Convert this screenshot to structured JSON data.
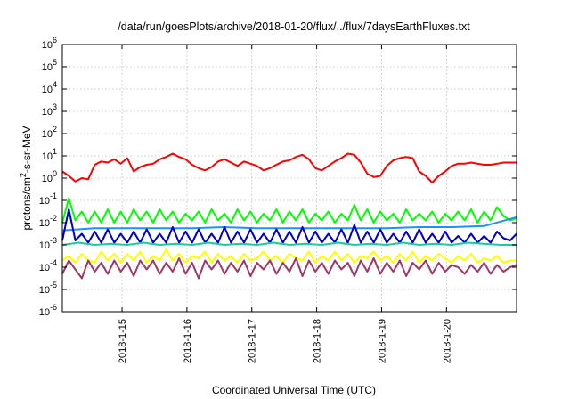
{
  "chart_data": {
    "type": "line",
    "title": "/data/run/goesPlots/archive/2018-01-20/flux/../flux/7daysEarthFluxes.txt",
    "xlabel": "Coordinated Universal Time (UTC)",
    "ylabel": "protons/cm²-s-sr-MeV",
    "ylabel_parts": {
      "prefix": "protons/cm",
      "sup": "2",
      "suffix": "-s-sr-MeV"
    },
    "yscale": "log",
    "ylim": [
      1e-06,
      1000000.0
    ],
    "xlim": [
      0,
      7
    ],
    "grid": true,
    "y_ticks": [
      {
        "base": "10",
        "exp": "-6",
        "value": -6
      },
      {
        "base": "10",
        "exp": "-5",
        "value": -5
      },
      {
        "base": "10",
        "exp": "-4",
        "value": -4
      },
      {
        "base": "10",
        "exp": "-3",
        "value": -3
      },
      {
        "base": "10",
        "exp": "-2",
        "value": -2
      },
      {
        "base": "10",
        "exp": "-1",
        "value": -1
      },
      {
        "base": "10",
        "exp": "0",
        "value": 0
      },
      {
        "base": "10",
        "exp": "1",
        "value": 1
      },
      {
        "base": "10",
        "exp": "2",
        "value": 2
      },
      {
        "base": "10",
        "exp": "3",
        "value": 3
      },
      {
        "base": "10",
        "exp": "4",
        "value": 4
      },
      {
        "base": "10",
        "exp": "5",
        "value": 5
      },
      {
        "base": "10",
        "exp": "6",
        "value": 6
      }
    ],
    "x_ticks": [
      {
        "label": "2018-1-15",
        "value": 0.92
      },
      {
        "label": "2018-1-16",
        "value": 1.92
      },
      {
        "label": "2018-1-17",
        "value": 2.92
      },
      {
        "label": "2018-1-18",
        "value": 3.92
      },
      {
        "label": "2018-1-19",
        "value": 4.92
      },
      {
        "label": "2018-1-20",
        "value": 5.92
      }
    ],
    "series": [
      {
        "color": "#ff0000",
        "x": [
          0,
          0.1,
          0.2,
          0.3,
          0.4,
          0.5,
          0.6,
          0.7,
          0.8,
          0.9,
          1.0,
          1.1,
          1.2,
          1.3,
          1.4,
          1.5,
          1.6,
          1.7,
          1.8,
          1.9,
          2.0,
          2.1,
          2.2,
          2.3,
          2.4,
          2.5,
          2.6,
          2.7,
          2.8,
          2.9,
          3.0,
          3.1,
          3.2,
          3.3,
          3.4,
          3.5,
          3.6,
          3.7,
          3.8,
          3.9,
          4.0,
          4.1,
          4.2,
          4.3,
          4.4,
          4.5,
          4.6,
          4.7,
          4.8,
          4.9,
          5.0,
          5.1,
          5.2,
          5.3,
          5.4,
          5.5,
          5.6,
          5.7,
          5.8,
          5.9,
          6.0,
          6.1,
          6.2,
          6.3,
          6.4,
          6.5,
          6.6,
          6.7,
          6.8,
          6.9,
          7.0
        ],
        "log10_values": [
          0.3,
          0.1,
          -0.15,
          0.0,
          -0.05,
          0.6,
          0.75,
          0.7,
          0.85,
          0.65,
          0.9,
          0.3,
          0.5,
          0.6,
          0.65,
          0.85,
          0.95,
          1.1,
          0.95,
          0.85,
          0.6,
          0.45,
          0.35,
          0.5,
          0.75,
          0.85,
          0.7,
          0.55,
          0.75,
          0.65,
          0.55,
          0.35,
          0.45,
          0.6,
          0.75,
          0.8,
          0.95,
          1.05,
          0.85,
          0.45,
          0.35,
          0.55,
          0.75,
          0.9,
          1.1,
          1.05,
          0.7,
          0.2,
          0.05,
          0.1,
          0.55,
          0.8,
          0.9,
          0.95,
          0.9,
          0.3,
          0.1,
          -0.2,
          0.1,
          0.3,
          0.55,
          0.65,
          0.65,
          0.7,
          0.65,
          0.6,
          0.6,
          0.65,
          0.7,
          0.7,
          0.7
        ]
      },
      {
        "color": "#00ff00",
        "x": [
          0,
          0.1,
          0.2,
          0.3,
          0.4,
          0.5,
          0.6,
          0.7,
          0.8,
          0.9,
          1.0,
          1.1,
          1.2,
          1.3,
          1.4,
          1.5,
          1.6,
          1.7,
          1.8,
          1.9,
          2.0,
          2.1,
          2.2,
          2.3,
          2.4,
          2.5,
          2.6,
          2.7,
          2.8,
          2.9,
          3.0,
          3.1,
          3.2,
          3.3,
          3.4,
          3.5,
          3.6,
          3.7,
          3.8,
          3.9,
          4.0,
          4.1,
          4.2,
          4.3,
          4.4,
          4.5,
          4.6,
          4.7,
          4.8,
          4.9,
          5.0,
          5.1,
          5.2,
          5.3,
          5.4,
          5.5,
          5.6,
          5.7,
          5.8,
          5.9,
          6.0,
          6.1,
          6.2,
          6.3,
          6.4,
          6.5,
          6.6,
          6.7,
          6.8,
          6.9,
          7.0
        ],
        "log10_values": [
          -2.0,
          -0.9,
          -1.9,
          -1.5,
          -2.0,
          -1.5,
          -2.0,
          -1.4,
          -2.0,
          -1.5,
          -2.0,
          -1.4,
          -1.9,
          -1.5,
          -2.0,
          -1.4,
          -1.9,
          -1.5,
          -2.0,
          -1.6,
          -1.9,
          -1.5,
          -2.0,
          -1.4,
          -1.9,
          -1.6,
          -2.0,
          -1.4,
          -1.9,
          -1.5,
          -2.0,
          -1.6,
          -1.9,
          -1.4,
          -2.0,
          -1.5,
          -1.9,
          -1.4,
          -2.0,
          -1.6,
          -1.9,
          -1.5,
          -2.0,
          -1.6,
          -1.9,
          -1.2,
          -1.9,
          -1.4,
          -2.0,
          -1.5,
          -1.9,
          -1.6,
          -2.0,
          -1.4,
          -1.9,
          -1.6,
          -1.9,
          -1.5,
          -2.0,
          -1.6,
          -1.9,
          -1.5,
          -1.9,
          -1.4,
          -2.0,
          -1.5,
          -1.9,
          -1.3,
          -1.7,
          -1.9,
          -1.8
        ]
      },
      {
        "color": "#1e90ff",
        "x": [
          0,
          0.5,
          1.0,
          1.5,
          2.0,
          2.5,
          3.0,
          3.5,
          4.0,
          4.5,
          5.0,
          5.5,
          6.0,
          6.5,
          7.0
        ],
        "log10_values": [
          -2.35,
          -2.25,
          -2.25,
          -2.25,
          -2.25,
          -2.2,
          -2.25,
          -2.25,
          -2.25,
          -2.25,
          -2.25,
          -2.2,
          -2.2,
          -2.15,
          -1.75
        ]
      },
      {
        "color": "#0000cd",
        "x": [
          0,
          0.1,
          0.2,
          0.3,
          0.4,
          0.5,
          0.6,
          0.7,
          0.8,
          0.9,
          1.0,
          1.1,
          1.2,
          1.3,
          1.4,
          1.5,
          1.6,
          1.7,
          1.8,
          1.9,
          2.0,
          2.1,
          2.2,
          2.3,
          2.4,
          2.5,
          2.6,
          2.7,
          2.8,
          2.9,
          3.0,
          3.1,
          3.2,
          3.3,
          3.4,
          3.5,
          3.6,
          3.7,
          3.8,
          3.9,
          4.0,
          4.1,
          4.2,
          4.3,
          4.4,
          4.5,
          4.6,
          4.7,
          4.8,
          4.9,
          5.0,
          5.1,
          5.2,
          5.3,
          5.4,
          5.5,
          5.6,
          5.7,
          5.8,
          5.9,
          6.0,
          6.1,
          6.2,
          6.3,
          6.4,
          6.5,
          6.6,
          6.7,
          6.8,
          6.9,
          7.0
        ],
        "log10_values": [
          -2.8,
          -1.4,
          -2.8,
          -2.5,
          -2.9,
          -2.4,
          -2.9,
          -2.3,
          -2.9,
          -2.5,
          -2.9,
          -2.4,
          -2.9,
          -2.3,
          -2.9,
          -2.5,
          -2.9,
          -2.2,
          -2.9,
          -2.4,
          -2.9,
          -2.3,
          -2.9,
          -2.5,
          -2.9,
          -2.2,
          -2.9,
          -2.4,
          -2.9,
          -2.3,
          -2.9,
          -2.5,
          -2.9,
          -2.3,
          -2.9,
          -2.4,
          -2.9,
          -2.2,
          -2.9,
          -2.4,
          -2.9,
          -2.5,
          -2.9,
          -2.3,
          -2.9,
          -2.1,
          -2.9,
          -2.4,
          -2.9,
          -2.3,
          -2.9,
          -2.5,
          -2.9,
          -2.4,
          -2.9,
          -2.3,
          -2.9,
          -2.5,
          -2.9,
          -2.4,
          -2.9,
          -2.6,
          -2.9,
          -2.5,
          -2.9,
          -2.6,
          -2.9,
          -2.4,
          -2.7,
          -2.8,
          -2.5
        ]
      },
      {
        "color": "#20c8a0",
        "x": [
          0,
          0.25,
          0.5,
          0.75,
          1.0,
          1.25,
          1.5,
          1.75,
          2.0,
          2.25,
          2.5,
          2.75,
          3.0,
          3.25,
          3.5,
          3.75,
          4.0,
          4.25,
          4.5,
          4.75,
          5.0,
          5.25,
          5.5,
          5.75,
          6.0,
          6.25,
          6.5,
          6.75,
          7.0
        ],
        "log10_values": [
          -3.0,
          -2.9,
          -3.0,
          -2.95,
          -3.0,
          -2.9,
          -3.0,
          -2.95,
          -3.0,
          -2.9,
          -3.0,
          -2.95,
          -3.0,
          -2.9,
          -3.0,
          -2.95,
          -3.0,
          -2.9,
          -3.0,
          -2.95,
          -3.0,
          -2.9,
          -3.0,
          -2.95,
          -3.0,
          -2.9,
          -2.95,
          -3.0,
          -3.0
        ]
      },
      {
        "color": "#ffff00",
        "x": [
          0,
          0.1,
          0.2,
          0.3,
          0.4,
          0.5,
          0.6,
          0.7,
          0.8,
          0.9,
          1.0,
          1.1,
          1.2,
          1.3,
          1.4,
          1.5,
          1.6,
          1.7,
          1.8,
          1.9,
          2.0,
          2.1,
          2.2,
          2.3,
          2.4,
          2.5,
          2.6,
          2.7,
          2.8,
          2.9,
          3.0,
          3.1,
          3.2,
          3.3,
          3.4,
          3.5,
          3.6,
          3.7,
          3.8,
          3.9,
          4.0,
          4.1,
          4.2,
          4.3,
          4.4,
          4.5,
          4.6,
          4.7,
          4.8,
          4.9,
          5.0,
          5.1,
          5.2,
          5.3,
          5.4,
          5.5,
          5.6,
          5.7,
          5.8,
          5.9,
          6.0,
          6.1,
          6.2,
          6.3,
          6.4,
          6.5,
          6.6,
          6.7,
          6.8,
          6.9,
          7.0
        ],
        "log10_values": [
          -3.7,
          -3.5,
          -3.8,
          -3.4,
          -3.7,
          -3.8,
          -3.3,
          -3.7,
          -3.4,
          -3.8,
          -3.4,
          -3.7,
          -3.3,
          -3.8,
          -3.5,
          -3.7,
          -3.2,
          -3.7,
          -3.4,
          -3.8,
          -3.5,
          -3.6,
          -3.3,
          -3.8,
          -3.4,
          -3.7,
          -3.5,
          -3.8,
          -3.4,
          -3.7,
          -3.6,
          -3.3,
          -3.7,
          -3.5,
          -3.8,
          -3.4,
          -3.6,
          -3.7,
          -3.3,
          -3.8,
          -3.5,
          -3.7,
          -3.3,
          -3.7,
          -3.4,
          -3.8,
          -3.5,
          -3.6,
          -3.3,
          -3.7,
          -3.5,
          -3.8,
          -3.4,
          -3.7,
          -3.3,
          -3.8,
          -3.5,
          -3.7,
          -3.4,
          -3.6,
          -3.8,
          -3.5,
          -3.7,
          -3.4,
          -3.8,
          -3.6,
          -3.7,
          -3.5,
          -3.8,
          -3.7,
          -3.7
        ]
      },
      {
        "color": "#9b3a6a",
        "x": [
          0,
          0.1,
          0.2,
          0.3,
          0.4,
          0.5,
          0.6,
          0.7,
          0.8,
          0.9,
          1.0,
          1.1,
          1.2,
          1.3,
          1.4,
          1.5,
          1.6,
          1.7,
          1.8,
          1.9,
          2.0,
          2.1,
          2.2,
          2.3,
          2.4,
          2.5,
          2.6,
          2.7,
          2.8,
          2.9,
          3.0,
          3.1,
          3.2,
          3.3,
          3.4,
          3.5,
          3.6,
          3.7,
          3.8,
          3.9,
          4.0,
          4.1,
          4.2,
          4.3,
          4.4,
          4.5,
          4.6,
          4.7,
          4.8,
          4.9,
          5.0,
          5.1,
          5.2,
          5.3,
          5.4,
          5.5,
          5.6,
          5.7,
          5.8,
          5.9,
          6.0,
          6.1,
          6.2,
          6.3,
          6.4,
          6.5,
          6.6,
          6.7,
          6.8,
          6.9,
          7.0
        ],
        "log10_values": [
          -4.3,
          -3.7,
          -4.1,
          -4.5,
          -3.7,
          -4.2,
          -3.8,
          -4.3,
          -3.7,
          -4.2,
          -3.8,
          -4.4,
          -3.7,
          -4.1,
          -3.7,
          -4.3,
          -3.8,
          -4.2,
          -3.6,
          -4.3,
          -3.8,
          -4.5,
          -3.7,
          -4.1,
          -3.7,
          -4.3,
          -3.8,
          -4.2,
          -3.7,
          -4.4,
          -3.8,
          -4.1,
          -3.7,
          -4.3,
          -3.8,
          -4.2,
          -3.6,
          -4.4,
          -3.7,
          -4.2,
          -3.8,
          -4.3,
          -3.7,
          -4.1,
          -3.8,
          -4.4,
          -3.7,
          -4.2,
          -3.6,
          -4.3,
          -3.8,
          -4.2,
          -3.7,
          -4.4,
          -3.8,
          -4.1,
          -3.7,
          -4.3,
          -3.8,
          -4.2,
          -3.9,
          -4.0,
          -4.3,
          -3.9,
          -4.2,
          -3.8,
          -4.3,
          -3.9,
          -4.2,
          -4.0,
          -3.9
        ]
      }
    ]
  }
}
